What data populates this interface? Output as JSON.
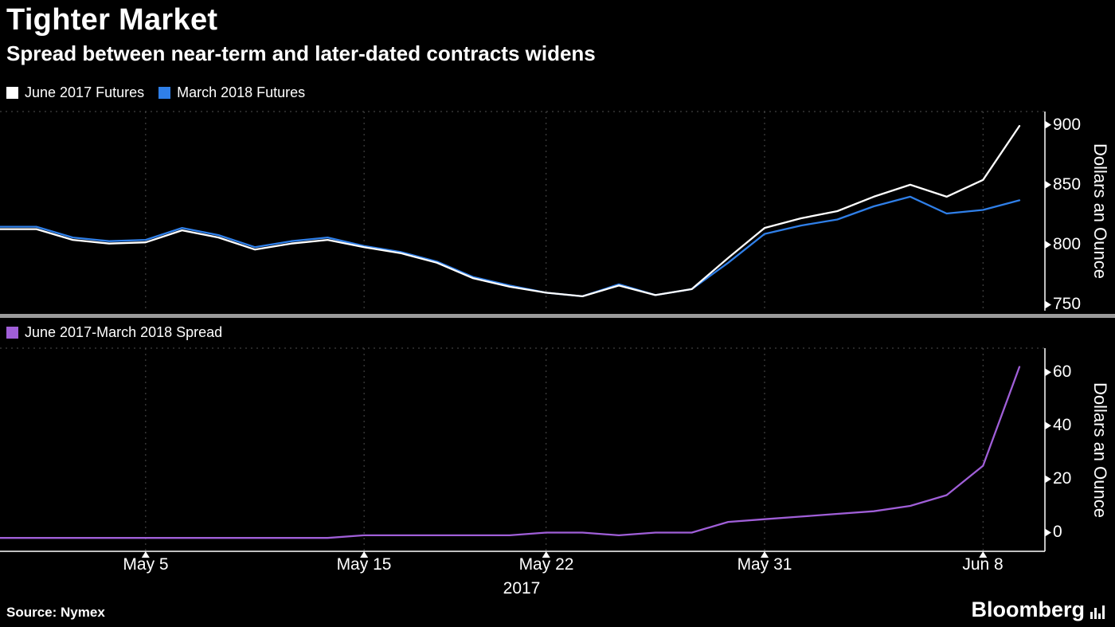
{
  "header": {
    "title": "Tighter Market",
    "subtitle": "Spread between near-term and later-dated contracts widens"
  },
  "source": {
    "label": "Source: Nymex"
  },
  "brand": {
    "name": "Bloomberg"
  },
  "colors": {
    "background": "#000000",
    "grid": "#4f4f4f",
    "axis": "#ffffff",
    "separator": "#9b9b9b",
    "june_2017": "#ffffff",
    "march_2018": "#2f7fe8",
    "spread": "#a05fd8"
  },
  "chart_data": [
    {
      "type": "line",
      "x": [
        "May 1",
        "May 2",
        "May 3",
        "May 4",
        "May 5",
        "May 8",
        "May 9",
        "May 10",
        "May 11",
        "May 12",
        "May 15",
        "May 16",
        "May 17",
        "May 18",
        "May 19",
        "May 22",
        "May 23",
        "May 24",
        "May 25",
        "May 26",
        "May 30",
        "May 31",
        "Jun 1",
        "Jun 2",
        "Jun 5",
        "Jun 6",
        "Jun 7",
        "Jun 8",
        "Jun 9"
      ],
      "xticks": [
        "May 5",
        "May 15",
        "May 22",
        "May 31",
        "Jun 8"
      ],
      "xlabel": "2017",
      "ylabel": "Dollars an Ounce",
      "yticks": [
        750,
        800,
        850,
        900
      ],
      "ylim": [
        745,
        911
      ],
      "grid": "dashed-vertical",
      "legend_position": "top-left",
      "series": [
        {
          "name": "June 2017 Futures",
          "color": "#ffffff",
          "values": [
            813,
            813,
            804,
            801,
            802,
            812,
            806,
            796,
            801,
            804,
            798,
            793,
            785,
            772,
            765,
            760,
            757,
            766,
            758,
            763,
            789,
            814,
            822,
            828,
            840,
            850,
            840,
            854,
            899
          ]
        },
        {
          "name": "March 2018 Futures",
          "color": "#2f7fe8",
          "values": [
            815,
            815,
            806,
            803,
            804,
            814,
            808,
            798,
            803,
            806,
            799,
            794,
            786,
            773,
            766,
            760,
            757,
            767,
            758,
            763,
            785,
            809,
            816,
            821,
            832,
            840,
            826,
            829,
            837
          ]
        }
      ]
    },
    {
      "type": "line",
      "x": [
        "May 1",
        "May 2",
        "May 3",
        "May 4",
        "May 5",
        "May 8",
        "May 9",
        "May 10",
        "May 11",
        "May 12",
        "May 15",
        "May 16",
        "May 17",
        "May 18",
        "May 19",
        "May 22",
        "May 23",
        "May 24",
        "May 25",
        "May 26",
        "May 30",
        "May 31",
        "Jun 1",
        "Jun 2",
        "Jun 5",
        "Jun 6",
        "Jun 7",
        "Jun 8",
        "Jun 9"
      ],
      "xticks": [
        "May 5",
        "May 15",
        "May 22",
        "May 31",
        "Jun 8"
      ],
      "xlabel": "2017",
      "ylabel": "Dollars an Ounce",
      "yticks": [
        0,
        20,
        40,
        60
      ],
      "ylim": [
        -7,
        69
      ],
      "grid": "dashed-vertical",
      "legend_position": "top-left",
      "series": [
        {
          "name": "June 2017-March 2018 Spread",
          "color": "#a05fd8",
          "values": [
            -2,
            -2,
            -2,
            -2,
            -2,
            -2,
            -2,
            -2,
            -2,
            -2,
            -1,
            -1,
            -1,
            -1,
            -1,
            0,
            0,
            -1,
            0,
            0,
            4,
            5,
            6,
            7,
            8,
            10,
            14,
            25,
            62
          ]
        }
      ]
    }
  ]
}
